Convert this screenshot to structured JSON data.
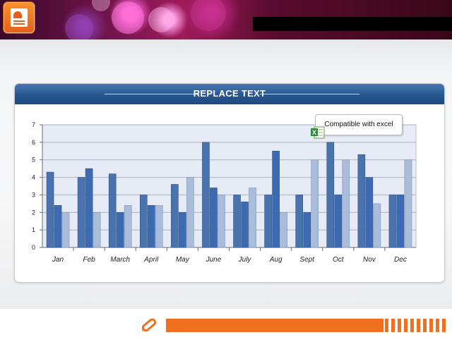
{
  "panel": {
    "title": "REPLACE TEXT"
  },
  "callout": {
    "text": "Compatible with excel"
  },
  "icons": [
    "presentation-logo-icon",
    "excel-icon",
    "pen-icon"
  ],
  "colors": {
    "header_blue": "#27558f",
    "accent_orange": "#f07022",
    "series1": "#4a72ad",
    "series2": "#3d6bb2",
    "series3": "#a9bcd9",
    "plot_bg": "#e7ebf5"
  },
  "chart_data": {
    "type": "bar",
    "categories": [
      "Jan",
      "Feb",
      "March",
      "April",
      "May",
      "June",
      "July",
      "Aug",
      "Sept",
      "Oct",
      "Nov",
      "Dec"
    ],
    "series": [
      {
        "values": [
          4.3,
          4.0,
          4.2,
          3.0,
          3.6,
          6.0,
          3.0,
          3.0,
          3.0,
          6.0,
          5.3,
          3.0
        ]
      },
      {
        "values": [
          2.4,
          4.5,
          2.0,
          2.4,
          2.0,
          3.4,
          2.6,
          5.5,
          2.0,
          3.0,
          4.0,
          3.0
        ]
      },
      {
        "values": [
          2.0,
          2.0,
          2.4,
          2.4,
          4.0,
          3.0,
          3.4,
          2.0,
          5.0,
          5.0,
          2.5,
          5.0
        ]
      }
    ],
    "ylim": [
      0,
      7
    ],
    "yticks": [
      0,
      1,
      2,
      3,
      4,
      5,
      6,
      7
    ],
    "grid": true,
    "legend": "none"
  }
}
